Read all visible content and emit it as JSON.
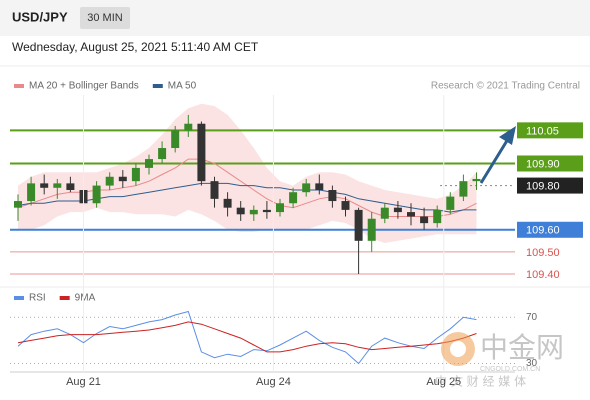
{
  "header": {
    "symbol": "USD/JPY",
    "timeframe": "30 MIN",
    "datetime": "Wednesday, August 25, 2021 5:11:40 AM CET"
  },
  "chart_data": [
    {
      "type": "candlestick",
      "credit": "Research © 2021 Trading Central",
      "ylim": [
        109.35,
        110.21
      ],
      "up_color": "#3a8a2a",
      "down_color": "#333333",
      "candles": {
        "open": [
          109.7,
          109.73,
          109.81,
          109.79,
          109.81,
          109.78,
          109.72,
          109.8,
          109.84,
          109.82,
          109.88,
          109.92,
          109.97,
          110.05,
          110.08,
          109.82,
          109.74,
          109.7,
          109.67,
          109.69,
          109.68,
          109.72,
          109.77,
          109.81,
          109.78,
          109.73,
          109.69,
          109.55,
          109.65,
          109.7,
          109.68,
          109.66,
          109.63,
          109.69,
          109.75,
          109.82
        ],
        "high": [
          109.76,
          109.84,
          109.85,
          109.83,
          109.84,
          109.8,
          109.82,
          109.86,
          109.87,
          109.9,
          109.94,
          110.0,
          110.07,
          110.12,
          110.09,
          109.84,
          109.77,
          109.73,
          109.71,
          109.73,
          109.74,
          109.79,
          109.83,
          109.85,
          109.8,
          109.75,
          109.7,
          109.68,
          109.72,
          109.73,
          109.72,
          109.7,
          109.71,
          109.77,
          109.85,
          109.86
        ],
        "low": [
          109.64,
          109.71,
          109.76,
          109.74,
          109.77,
          109.68,
          109.7,
          109.78,
          109.79,
          109.8,
          109.85,
          109.9,
          109.95,
          110.02,
          109.8,
          109.7,
          109.66,
          109.64,
          109.64,
          109.65,
          109.66,
          109.7,
          109.75,
          109.76,
          109.7,
          109.66,
          109.4,
          109.5,
          109.63,
          109.65,
          109.62,
          109.6,
          109.61,
          109.67,
          109.73,
          109.78
        ],
        "close": [
          109.73,
          109.81,
          109.79,
          109.81,
          109.78,
          109.72,
          109.8,
          109.84,
          109.82,
          109.88,
          109.92,
          109.97,
          110.05,
          110.08,
          109.82,
          109.74,
          109.7,
          109.67,
          109.69,
          109.68,
          109.72,
          109.77,
          109.81,
          109.78,
          109.73,
          109.69,
          109.55,
          109.65,
          109.7,
          109.68,
          109.66,
          109.63,
          109.69,
          109.75,
          109.82,
          109.83
        ]
      },
      "series": [
        {
          "name": "MA 20 + Bollinger Bands",
          "color": "#e88a8a",
          "band_color": "#fbdcdc",
          "values": [
            109.7,
            109.72,
            109.74,
            109.76,
            109.77,
            109.77,
            109.78,
            109.78,
            109.79,
            109.8,
            109.82,
            109.85,
            109.88,
            109.92,
            109.92,
            109.9,
            109.86,
            109.82,
            109.78,
            109.74,
            109.71,
            109.7,
            109.72,
            109.74,
            109.75,
            109.74,
            109.71,
            109.68,
            109.66,
            109.66,
            109.66,
            109.66,
            109.66,
            109.67,
            109.69,
            109.72
          ],
          "upper": [
            109.8,
            109.84,
            109.86,
            109.86,
            109.86,
            109.86,
            109.86,
            109.88,
            109.9,
            109.93,
            109.97,
            110.03,
            110.1,
            110.15,
            110.17,
            110.16,
            110.12,
            110.05,
            109.97,
            109.88,
            109.82,
            109.8,
            109.84,
            109.86,
            109.86,
            109.85,
            109.82,
            109.8,
            109.78,
            109.77,
            109.76,
            109.75,
            109.74,
            109.76,
            109.8,
            109.86
          ],
          "lower": [
            109.6,
            109.6,
            109.62,
            109.66,
            109.68,
            109.68,
            109.7,
            109.68,
            109.68,
            109.67,
            109.67,
            109.67,
            109.66,
            109.69,
            109.67,
            109.64,
            109.6,
            109.59,
            109.59,
            109.6,
            109.6,
            109.6,
            109.6,
            109.62,
            109.64,
            109.63,
            109.6,
            109.56,
            109.54,
            109.55,
            109.56,
            109.57,
            109.58,
            109.58,
            109.58,
            109.58
          ]
        },
        {
          "name": "MA 50",
          "color": "#2e5e8e",
          "values": [
            109.71,
            109.72,
            109.72,
            109.73,
            109.73,
            109.73,
            109.74,
            109.75,
            109.75,
            109.76,
            109.77,
            109.78,
            109.79,
            109.8,
            109.81,
            109.81,
            109.81,
            109.8,
            109.8,
            109.79,
            109.79,
            109.78,
            109.78,
            109.78,
            109.77,
            109.76,
            109.74,
            109.73,
            109.72,
            109.71,
            109.7,
            109.69,
            109.69,
            109.68,
            109.69,
            109.69
          ]
        }
      ],
      "levels": [
        {
          "value": 110.05,
          "label": "110.05",
          "color": "#5a9e1a",
          "style": "box"
        },
        {
          "value": 109.9,
          "label": "109.90",
          "color": "#5a9e1a",
          "style": "box"
        },
        {
          "value": 109.8,
          "label": "109.80",
          "color": "#222222",
          "style": "box-dotted"
        },
        {
          "value": 109.6,
          "label": "109.60",
          "color": "#3f7fd8",
          "style": "box"
        },
        {
          "value": 109.5,
          "label": "109.50",
          "color": "#d9534f",
          "style": "text"
        },
        {
          "value": 109.4,
          "label": "109.40",
          "color": "#d9534f",
          "style": "text"
        }
      ]
    },
    {
      "type": "line",
      "ylim": [
        20,
        85
      ],
      "yticks": [
        30,
        70
      ],
      "xticks": [
        {
          "value": 5,
          "label": "Aug 21"
        },
        {
          "value": 19.5,
          "label": "Aug 24"
        },
        {
          "value": 32.5,
          "label": "Aug 25"
        }
      ],
      "series": [
        {
          "name": "RSI",
          "color": "#5b8ee6",
          "values": [
            45,
            55,
            58,
            60,
            55,
            48,
            56,
            62,
            60,
            63,
            66,
            68,
            72,
            75,
            40,
            35,
            38,
            36,
            42,
            41,
            46,
            52,
            58,
            50,
            44,
            40,
            30,
            45,
            52,
            48,
            45,
            43,
            52,
            60,
            70,
            68
          ]
        },
        {
          "name": "9MA",
          "color": "#cc2222",
          "values": [
            48,
            50,
            52,
            54,
            55,
            55,
            55,
            56,
            57,
            58,
            59,
            61,
            63,
            66,
            64,
            60,
            56,
            52,
            46,
            40,
            40,
            42,
            45,
            47,
            48,
            47,
            44,
            42,
            43,
            44,
            45,
            46,
            47,
            49,
            52,
            56
          ]
        }
      ]
    }
  ],
  "watermark": {
    "brand": "中金网",
    "site": "CNGOLD.COM.CN",
    "slogan": "中 文 财 经 媒 体"
  }
}
